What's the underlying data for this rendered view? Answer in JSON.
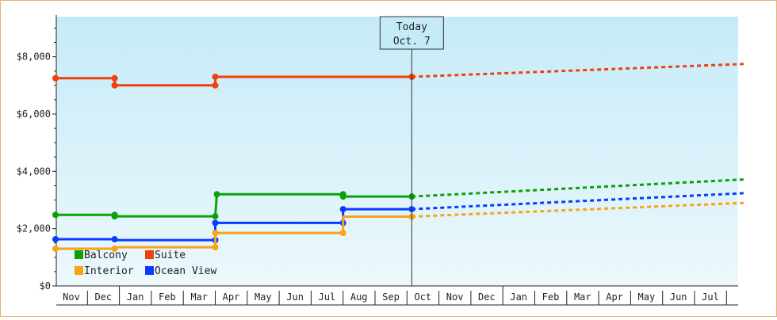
{
  "chart_data": {
    "type": "line",
    "title": "",
    "xlabel": "",
    "ylabel": "",
    "ylim": [
      0,
      9400
    ],
    "yticks": [
      0,
      2000,
      4000,
      6000,
      8000
    ],
    "ytick_labels": [
      "$0",
      "$2,000",
      "$4,000",
      "$6,000",
      "$8,000"
    ],
    "x_months": [
      "Nov",
      "Dec",
      "Jan",
      "Feb",
      "Mar",
      "Apr",
      "May",
      "Jun",
      "Jul",
      "Aug",
      "Sep",
      "Oct",
      "Nov",
      "Dec",
      "Jan",
      "Feb",
      "Mar",
      "Apr",
      "May",
      "Jun",
      "Jul"
    ],
    "today_marker": {
      "line1": "Today",
      "line2": "Oct. 7",
      "x": 11.15
    },
    "legend": {
      "placement": "bottom-left",
      "items": [
        {
          "name": "Balcony",
          "color": "#0aa10a"
        },
        {
          "name": "Suite",
          "color": "#f0400e"
        },
        {
          "name": "Interior",
          "color": "#f8a414"
        },
        {
          "name": "Ocean View",
          "color": "#0a3cff"
        }
      ]
    },
    "background": {
      "top": "#c6ebf8",
      "bottom": "#ecf8fc"
    },
    "series": [
      {
        "name": "Suite",
        "color": "#f0400e",
        "points": [
          [
            0,
            7250
          ],
          [
            1.85,
            7250
          ],
          [
            1.85,
            7000
          ],
          [
            5.0,
            7000
          ],
          [
            5.0,
            7300
          ],
          [
            11.15,
            7300
          ]
        ],
        "markers": [
          [
            0,
            7250
          ],
          [
            1.85,
            7250
          ],
          [
            1.85,
            7000
          ],
          [
            5.0,
            7000
          ],
          [
            5.0,
            7300
          ],
          [
            11.15,
            7300
          ]
        ],
        "forecast": [
          [
            11.15,
            7300
          ],
          [
            21.6,
            7750
          ]
        ]
      },
      {
        "name": "Balcony",
        "color": "#0aa10a",
        "points": [
          [
            0,
            2480
          ],
          [
            1.85,
            2480
          ],
          [
            1.85,
            2430
          ],
          [
            5.0,
            2430
          ],
          [
            5.05,
            3200
          ],
          [
            9.0,
            3200
          ],
          [
            9.0,
            3120
          ],
          [
            11.15,
            3120
          ]
        ],
        "markers": [
          [
            0,
            2480
          ],
          [
            1.85,
            2480
          ],
          [
            1.85,
            2430
          ],
          [
            5.0,
            2430
          ],
          [
            5.05,
            3200
          ],
          [
            9.0,
            3200
          ],
          [
            9.0,
            3120
          ],
          [
            11.15,
            3120
          ]
        ],
        "forecast": [
          [
            11.15,
            3120
          ],
          [
            21.6,
            3720
          ]
        ]
      },
      {
        "name": "Ocean View",
        "color": "#0a3cff",
        "points": [
          [
            0,
            1630
          ],
          [
            1.85,
            1630
          ],
          [
            1.85,
            1600
          ],
          [
            5.0,
            1600
          ],
          [
            5.0,
            2200
          ],
          [
            9.0,
            2200
          ],
          [
            9.0,
            2680
          ],
          [
            11.15,
            2680
          ]
        ],
        "markers": [
          [
            0,
            1630
          ],
          [
            1.85,
            1630
          ],
          [
            5.0,
            1600
          ],
          [
            5.0,
            2200
          ],
          [
            9.0,
            2200
          ],
          [
            9.0,
            2680
          ],
          [
            11.15,
            2680
          ]
        ],
        "forecast": [
          [
            11.15,
            2680
          ],
          [
            21.6,
            3240
          ]
        ]
      },
      {
        "name": "Interior",
        "color": "#f8a414",
        "points": [
          [
            0,
            1300
          ],
          [
            1.85,
            1300
          ],
          [
            1.85,
            1350
          ],
          [
            5.0,
            1350
          ],
          [
            5.0,
            1850
          ],
          [
            9.0,
            1850
          ],
          [
            9.0,
            2420
          ],
          [
            11.15,
            2420
          ]
        ],
        "markers": [
          [
            0,
            1300
          ],
          [
            1.85,
            1300
          ],
          [
            5.0,
            1350
          ],
          [
            5.0,
            1850
          ],
          [
            9.0,
            1850
          ],
          [
            11.15,
            2420
          ]
        ],
        "forecast": [
          [
            11.15,
            2420
          ],
          [
            21.6,
            2900
          ]
        ]
      }
    ]
  }
}
